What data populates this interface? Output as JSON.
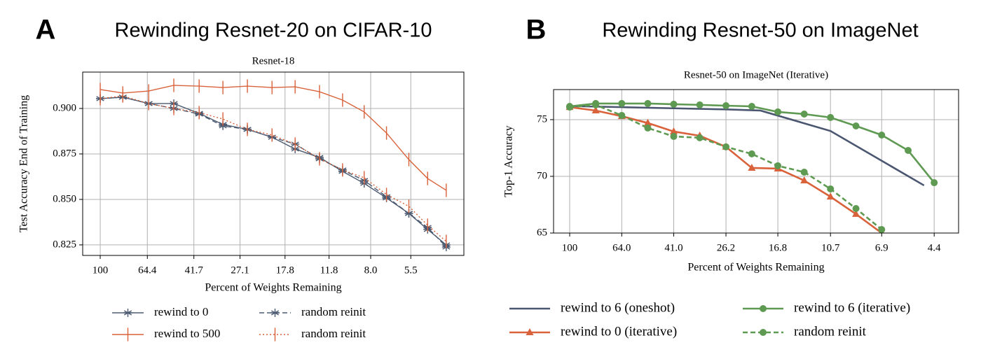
{
  "chart_data": [
    {
      "type": "line",
      "panel_label": "A",
      "heading": "Rewinding Resnet-20 on CIFAR-10",
      "title": "Resnet-18",
      "x_label": "Percent of Weights Remaining",
      "y_label": "Test Accuracy End of Training",
      "xscale": "log",
      "xlim": [
        117.8,
        3.35
      ],
      "ylim": [
        0.8192,
        0.92
      ],
      "xticks": [
        100,
        64.4,
        41.7,
        27.1,
        17.8,
        11.8,
        {
          "value": 8,
          "label": "8.0"
        },
        5.5
      ],
      "yticks": [
        0.825,
        {
          "value": 0.85,
          "label": "0.850"
        },
        0.875,
        {
          "value": 0.9,
          "label": "0.900"
        }
      ],
      "grid": true,
      "legend": "below",
      "x": [
        100,
        81,
        63.6,
        50.3,
        39.7,
        31.8,
        25.3,
        20.1,
        16.2,
        12.9,
        10.4,
        8.5,
        6.9,
        5.6,
        4.7,
        3.95
      ],
      "series": [
        {
          "name": "rewind to 0",
          "color": "#4b5a70",
          "linestyle": "solid",
          "marker": "star",
          "values": [
            0.9054,
            0.9062,
            0.9027,
            0.9027,
            0.8973,
            0.8912,
            0.8885,
            0.8842,
            0.8777,
            0.8731,
            0.8654,
            0.8588,
            0.8508,
            0.8423,
            0.8335,
            0.825
          ]
        },
        {
          "name": "rewind to 500",
          "color": "#d9623b",
          "linestyle": "solid",
          "marker": "vline",
          "values": [
            0.9104,
            0.9085,
            0.9096,
            0.9127,
            0.9123,
            0.9115,
            0.9123,
            0.9115,
            0.9119,
            0.9092,
            0.9046,
            0.8981,
            0.8865,
            0.8719,
            0.8615,
            0.855
          ]
        },
        {
          "name": "random reinit",
          "color": "#4b5a70",
          "linestyle": "dashed",
          "marker": "star",
          "values": [
            0.9054,
            0.9062,
            0.9027,
            0.9,
            0.8969,
            0.8904,
            0.8885,
            0.8842,
            0.8804,
            0.8723,
            0.8662,
            0.8604,
            0.8515,
            0.8423,
            0.8346,
            0.8238
          ]
        },
        {
          "name": "random reinit",
          "color": "#d9623b",
          "linestyle": "dotted",
          "marker": "vline",
          "values": [
            0.9054,
            0.9069,
            0.9027,
            0.9,
            0.8977,
            0.8942,
            0.8885,
            0.8854,
            0.8804,
            0.8723,
            0.8662,
            0.8619,
            0.8527,
            0.8462,
            0.8358,
            0.8269
          ]
        }
      ]
    },
    {
      "type": "line",
      "panel_label": "B",
      "heading": "Rewinding Resnet-50 on ImageNet",
      "title": "Resnet-50 on ImageNet (Iterative)",
      "x_label": "Percent of Weights Remaining",
      "y_label": "Top-1 Accuracy",
      "xscale": "log",
      "xlim": [
        114.8,
        3.57
      ],
      "ylim": [
        65,
        77.65
      ],
      "xticks": [
        100,
        {
          "value": 64,
          "label": "64.0"
        },
        {
          "value": 41,
          "label": "41.0"
        },
        26.2,
        16.8,
        10.7,
        6.9,
        4.4
      ],
      "yticks": [
        65,
        70,
        75
      ],
      "grid": true,
      "legend": "below",
      "series": [
        {
          "name": "rewind to 6 (oneshot)",
          "color": "#4b5670",
          "linestyle": "solid",
          "marker": "none",
          "x": [
            100,
            64,
            41,
            26.2,
            19.5,
            10.7,
            4.8
          ],
          "values": [
            76.2,
            76.1,
            76.0,
            75.9,
            75.8,
            74.0,
            69.2
          ]
        },
        {
          "name": "rewind to 0 (iterative)",
          "color": "#d9623b",
          "linestyle": "solid",
          "marker": "triangle",
          "x": [
            100,
            80,
            64,
            51.2,
            41,
            32.8,
            26.2,
            21,
            16.8,
            13.4,
            10.7,
            8.6,
            6.9
          ],
          "values": [
            76.1,
            75.8,
            75.3,
            74.7,
            73.95,
            73.58,
            72.6,
            70.74,
            70.68,
            69.63,
            68.2,
            66.67,
            65.0
          ]
        },
        {
          "name": "rewind to 6 (iterative)",
          "color": "#5f9a52",
          "linestyle": "solid",
          "marker": "circle",
          "x": [
            100,
            80,
            64,
            51.2,
            41,
            32.8,
            26.2,
            21,
            16.8,
            13.4,
            10.7,
            8.6,
            6.9,
            5.5,
            4.4
          ],
          "values": [
            76.17,
            76.42,
            76.42,
            76.42,
            76.36,
            76.3,
            76.23,
            76.17,
            75.68,
            75.49,
            75.19,
            74.44,
            73.64,
            72.28,
            69.44
          ]
        },
        {
          "name": "random reinit",
          "color": "#5f9a52",
          "linestyle": "dashed",
          "marker": "circle",
          "x": [
            100,
            80,
            64,
            51.2,
            41,
            32.8,
            26.2,
            21,
            16.8,
            13.4,
            10.7,
            8.6,
            6.9
          ],
          "values": [
            76.1,
            76.3,
            75.37,
            74.26,
            73.52,
            73.4,
            72.6,
            71.98,
            70.93,
            70.37,
            68.89,
            67.16,
            65.31
          ]
        }
      ]
    }
  ]
}
